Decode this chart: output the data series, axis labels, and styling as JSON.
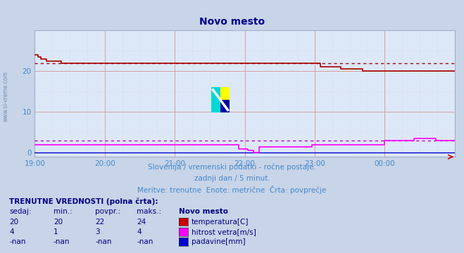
{
  "title": "Novo mesto",
  "bg_color": "#c8d4e8",
  "plot_bg_color": "#dce8f8",
  "title_color": "#000080",
  "xlim": [
    0,
    288
  ],
  "ylim": [
    -1,
    30
  ],
  "yticks": [
    0,
    10,
    20
  ],
  "xtick_labels": [
    "19:00",
    "20:00",
    "21:00",
    "22:00",
    "23:00",
    "00:00"
  ],
  "xtick_positions": [
    0,
    48,
    96,
    144,
    192,
    240
  ],
  "watermark": "www.si-vreme.com",
  "subtitle1": "Slovenija / vremenski podatki - ročne postaje.",
  "subtitle2": "zadnji dan / 5 minut.",
  "subtitle3": "Meritve: trenutne  Enote: metrične  Črta: povprečje",
  "temp_color": "#aa0000",
  "wind_color": "#ff00ff",
  "wind_avg_color": "#c000c0",
  "rain_color": "#0000cc",
  "temp_avg_value": 22,
  "wind_avg_value": 3,
  "table_header_bold": "TRENUTNE VREDNOSTI (polna črta):",
  "col_headers": [
    "sedaj:",
    "min.:",
    "povpr.:",
    "maks.:",
    "Novo mesto"
  ],
  "row_data": [
    [
      "20",
      "20",
      "22",
      "24",
      "temperatura[C]",
      "#cc0000"
    ],
    [
      "4",
      "1",
      "3",
      "4",
      "hitrost vetra[m/s]",
      "#ff00ff"
    ],
    [
      "-nan",
      "-nan",
      "-nan",
      "-nan",
      "padavine[mm]",
      "#0000cc"
    ]
  ]
}
